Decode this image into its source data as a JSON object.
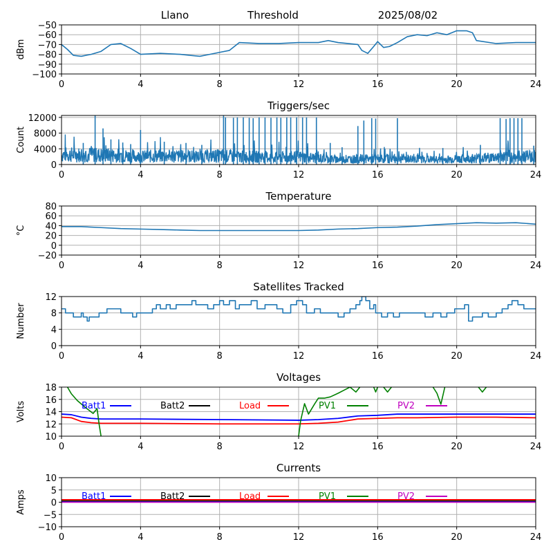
{
  "header": {
    "site": "Llano",
    "mode": "Threshold",
    "date": "2025/08/02"
  },
  "colors": {
    "line": "#1f77b4",
    "grid": "#b0b0b0",
    "Batt1": "#0000ff",
    "Batt2": "#000000",
    "Load": "#ff0000",
    "PV1": "#008000",
    "PV2": "#bf00bf"
  },
  "chart_data": [
    {
      "id": "signal",
      "type": "line",
      "title": "",
      "xlabel": "",
      "ylabel": "dBm",
      "xlim": [
        0,
        24
      ],
      "ylim": [
        -100,
        -50
      ],
      "xticks": [
        0,
        4,
        8,
        12,
        16,
        20,
        24
      ],
      "yticks": [
        -100,
        -90,
        -80,
        -70,
        -60,
        -50
      ],
      "grid": true,
      "series": [
        {
          "color_key": "line",
          "x": [
            0,
            0.3,
            0.6,
            1,
            1.5,
            2,
            2.5,
            3,
            3.5,
            4,
            5,
            6,
            6.5,
            7,
            7.5,
            8,
            8.5,
            9,
            10,
            11,
            12,
            12.5,
            13,
            13.5,
            14,
            14.5,
            15,
            15.2,
            15.5,
            15.8,
            16,
            16.3,
            16.6,
            17,
            17.5,
            18,
            18.5,
            19,
            19.5,
            20,
            20.5,
            20.8,
            21,
            22,
            23,
            24
          ],
          "y": [
            -70,
            -75,
            -81,
            -82,
            -80,
            -77,
            -70,
            -69,
            -74,
            -80,
            -79,
            -80,
            -81,
            -82,
            -80,
            -78,
            -76,
            -68,
            -69,
            -69,
            -68,
            -68,
            -68,
            -66,
            -68,
            -69,
            -70,
            -76,
            -79,
            -72,
            -67,
            -73,
            -72,
            -68,
            -62,
            -60,
            -61,
            -58,
            -60,
            -56,
            -56,
            -58,
            -66,
            -69,
            -68,
            -68
          ]
        }
      ]
    },
    {
      "id": "triggers",
      "type": "line",
      "title": "Triggers/sec",
      "xlabel": "",
      "ylabel": "Count",
      "xlim": [
        0,
        24
      ],
      "ylim": [
        0,
        12500
      ],
      "xticks": [
        0,
        4,
        8,
        12,
        16,
        20,
        24
      ],
      "yticks": [
        0,
        4000,
        8000,
        12000
      ],
      "grid": true,
      "baseline": [
        [
          0,
          2500
        ],
        [
          1,
          2500
        ],
        [
          2,
          2400
        ],
        [
          3,
          2300
        ],
        [
          4,
          2000
        ],
        [
          5,
          2200
        ],
        [
          6,
          2100
        ],
        [
          7,
          2000
        ],
        [
          8,
          2200
        ],
        [
          9,
          2000
        ],
        [
          10,
          2000
        ],
        [
          11,
          1800
        ],
        [
          12,
          2000
        ],
        [
          13,
          1600
        ],
        [
          14,
          1300
        ],
        [
          15,
          1400
        ],
        [
          16,
          1500
        ],
        [
          17,
          1500
        ],
        [
          18,
          1400
        ],
        [
          19,
          1200
        ],
        [
          20,
          1400
        ],
        [
          21,
          1600
        ],
        [
          22,
          1800
        ],
        [
          23,
          2000
        ],
        [
          24,
          2200
        ]
      ],
      "spikes": [
        [
          1.1,
          5500
        ],
        [
          1.7,
          12500
        ],
        [
          2.1,
          9200
        ],
        [
          2.5,
          6400
        ],
        [
          3.1,
          5600
        ],
        [
          3.5,
          5200
        ],
        [
          4.0,
          8800
        ],
        [
          5.2,
          5800
        ],
        [
          6.3,
          5500
        ],
        [
          7.1,
          5000
        ],
        [
          8.2,
          12500
        ],
        [
          8.3,
          12000
        ],
        [
          8.7,
          11900
        ],
        [
          8.9,
          12000
        ],
        [
          9.2,
          12000
        ],
        [
          9.5,
          11900
        ],
        [
          9.7,
          11800
        ],
        [
          10.0,
          12000
        ],
        [
          10.3,
          12000
        ],
        [
          10.6,
          11900
        ],
        [
          10.9,
          12000
        ],
        [
          11.1,
          11900
        ],
        [
          11.4,
          12000
        ],
        [
          11.6,
          12000
        ],
        [
          11.9,
          12000
        ],
        [
          12.2,
          12000
        ],
        [
          12.4,
          12000
        ],
        [
          12.9,
          12000
        ],
        [
          13.6,
          5500
        ],
        [
          14.2,
          4400
        ],
        [
          15.0,
          9800
        ],
        [
          15.3,
          11200
        ],
        [
          15.7,
          11800
        ],
        [
          15.9,
          11700
        ],
        [
          17.0,
          11800
        ],
        [
          19.3,
          4200
        ],
        [
          21.2,
          5000
        ],
        [
          22.2,
          11800
        ],
        [
          22.5,
          11600
        ],
        [
          22.7,
          11800
        ],
        [
          22.9,
          11800
        ],
        [
          23.1,
          11800
        ],
        [
          23.3,
          11800
        ],
        [
          23.9,
          4800
        ]
      ]
    },
    {
      "id": "temperature",
      "type": "line",
      "title": "Temperature",
      "xlabel": "",
      "ylabel": "°C",
      "xlim": [
        0,
        24
      ],
      "ylim": [
        -20,
        80
      ],
      "xticks": [
        0,
        4,
        8,
        12,
        16,
        20,
        24
      ],
      "yticks": [
        -20,
        0,
        20,
        40,
        60,
        80
      ],
      "grid": true,
      "series": [
        {
          "color_key": "line",
          "x": [
            0,
            1,
            2,
            3,
            4,
            5,
            6,
            7,
            8,
            10,
            12,
            13,
            14,
            15,
            16,
            17,
            18,
            19,
            20,
            21,
            22,
            23,
            24
          ],
          "y": [
            38,
            38,
            36,
            34,
            33,
            32,
            31,
            30,
            30,
            30,
            30,
            31,
            33,
            34,
            36,
            37,
            39,
            42,
            44,
            46,
            45,
            46,
            43
          ]
        }
      ]
    },
    {
      "id": "satellites",
      "type": "line",
      "title": "Satellites Tracked",
      "xlabel": "",
      "ylabel": "Number",
      "xlim": [
        0,
        24
      ],
      "ylim": [
        0,
        12
      ],
      "xticks": [
        0,
        4,
        8,
        12,
        16,
        20,
        24
      ],
      "yticks": [
        0,
        4,
        8,
        12
      ],
      "grid": true,
      "series": [
        {
          "color_key": "line",
          "step": true,
          "x": [
            0,
            0.2,
            0.4,
            0.6,
            0.8,
            1.0,
            1.1,
            1.3,
            1.4,
            1.9,
            2.3,
            2.6,
            3.0,
            3.6,
            3.8,
            4.2,
            4.6,
            4.8,
            5.0,
            5.3,
            5.5,
            5.8,
            6.2,
            6.6,
            6.8,
            7.1,
            7.4,
            7.7,
            8.0,
            8.2,
            8.5,
            8.8,
            9.0,
            9.3,
            9.6,
            9.9,
            10.3,
            10.6,
            10.9,
            11.2,
            11.6,
            11.9,
            12.2,
            12.4,
            12.8,
            13.1,
            13.4,
            13.7,
            14.0,
            14.3,
            14.6,
            14.9,
            15.1,
            15.2,
            15.4,
            15.6,
            15.8,
            15.9,
            16.2,
            16.5,
            16.8,
            17.1,
            17.5,
            18.0,
            18.4,
            18.8,
            19.2,
            19.5,
            19.9,
            20.2,
            20.4,
            20.6,
            20.8,
            21.0,
            21.3,
            21.6,
            22.0,
            22.3,
            22.6,
            22.8,
            23.1,
            23.4,
            24
          ],
          "y": [
            9,
            8,
            8,
            7,
            7,
            8,
            7,
            6,
            7,
            8,
            9,
            9,
            8,
            7,
            8,
            8,
            9,
            10,
            9,
            10,
            9,
            10,
            10,
            11,
            10,
            10,
            9,
            10,
            11,
            10,
            11,
            9,
            10,
            10,
            11,
            9,
            10,
            10,
            9,
            8,
            10,
            11,
            10,
            8,
            9,
            8,
            8,
            8,
            7,
            8,
            9,
            10,
            11,
            12,
            11,
            9,
            10,
            8,
            7,
            8,
            7,
            8,
            8,
            8,
            7,
            8,
            7,
            8,
            9,
            9,
            10,
            6,
            7,
            7,
            8,
            7,
            8,
            9,
            10,
            11,
            10,
            9,
            9
          ]
        }
      ]
    },
    {
      "id": "voltages",
      "type": "line",
      "title": "Voltages",
      "xlabel": "",
      "ylabel": "Volts",
      "xlim": [
        0,
        24
      ],
      "ylim": [
        10,
        18
      ],
      "xticks": [
        0,
        4,
        8,
        12,
        16,
        20,
        24
      ],
      "yticks": [
        10,
        12,
        14,
        16,
        18
      ],
      "grid": true,
      "legend": [
        "Batt1",
        "Batt2",
        "Load",
        "PV1",
        "PV2"
      ],
      "series": [
        {
          "name": "Batt1",
          "color_key": "Batt1",
          "x": [
            0,
            0.5,
            1,
            1.5,
            2,
            4,
            8,
            12,
            13,
            14,
            15,
            16,
            17,
            18,
            20,
            22,
            24
          ],
          "y": [
            13.6,
            13.5,
            13.1,
            12.9,
            12.8,
            12.8,
            12.7,
            12.6,
            12.7,
            12.9,
            13.3,
            13.4,
            13.6,
            13.6,
            13.6,
            13.6,
            13.6
          ]
        },
        {
          "name": "Load",
          "color_key": "Load",
          "x": [
            0,
            0.5,
            1,
            1.5,
            2,
            4,
            8,
            12,
            13,
            14,
            15,
            16,
            17,
            18,
            20,
            22,
            24
          ],
          "y": [
            13.1,
            13.0,
            12.4,
            12.2,
            12.1,
            12.1,
            12.0,
            12.0,
            12.1,
            12.3,
            12.8,
            12.9,
            13.0,
            13.0,
            13.1,
            13.1,
            13.0
          ]
        },
        {
          "name": "PV1",
          "color_key": "PV1",
          "segments": [
            {
              "x": [
                0.3,
                0.5,
                0.8,
                1.2,
                1.6,
                1.8,
                1.9,
                2.0
              ],
              "y": [
                18,
                16.9,
                15.8,
                14.7,
                13.7,
                14.5,
                12.0,
                10
              ]
            },
            {
              "x": [
                12.0,
                12.1,
                12.3,
                12.5,
                12.8,
                13.0,
                13.3,
                13.6,
                14.0,
                14.3,
                14.6,
                14.9,
                15.1
              ],
              "y": [
                10,
                12.5,
                15.3,
                13.6,
                15.2,
                16.2,
                16.2,
                16.4,
                17.0,
                17.5,
                18,
                17.2,
                18
              ]
            },
            {
              "x": [
                15.8,
                15.9,
                16.0
              ],
              "y": [
                18,
                17.2,
                18
              ]
            },
            {
              "x": [
                16.3,
                16.5,
                16.7
              ],
              "y": [
                18,
                17.2,
                18
              ]
            },
            {
              "x": [
                18.8,
                19.0,
                19.2,
                19.4
              ],
              "y": [
                18,
                17.0,
                15.2,
                18
              ]
            },
            {
              "x": [
                21.1,
                21.3,
                21.5
              ],
              "y": [
                18,
                17.2,
                18
              ]
            }
          ]
        }
      ]
    },
    {
      "id": "currents",
      "type": "line",
      "title": "Currents",
      "xlabel": "",
      "ylabel": "Amps",
      "xlim": [
        0,
        24
      ],
      "ylim": [
        -10,
        10
      ],
      "xticks": [
        0,
        4,
        8,
        12,
        16,
        20,
        24
      ],
      "yticks": [
        -10,
        -5,
        0,
        5,
        10
      ],
      "grid": true,
      "legend": [
        "Batt1",
        "Batt2",
        "Load",
        "PV1",
        "PV2"
      ],
      "series": [
        {
          "name": "Batt1",
          "color_key": "Batt1",
          "x": [
            0,
            24
          ],
          "y": [
            0.3,
            0.3
          ]
        },
        {
          "name": "Batt2",
          "color_key": "Batt2",
          "x": [
            0,
            24
          ],
          "y": [
            0.6,
            0.6
          ]
        },
        {
          "name": "PV1",
          "color_key": "PV1",
          "x": [
            0,
            24
          ],
          "y": [
            0.8,
            0.8
          ]
        },
        {
          "name": "Load",
          "color_key": "Load",
          "x": [
            0,
            24
          ],
          "y": [
            1.0,
            1.0
          ]
        },
        {
          "name": "PV2",
          "color_key": "PV2",
          "x": [
            0,
            24
          ],
          "y": [
            0.0,
            0.0
          ]
        }
      ]
    }
  ]
}
